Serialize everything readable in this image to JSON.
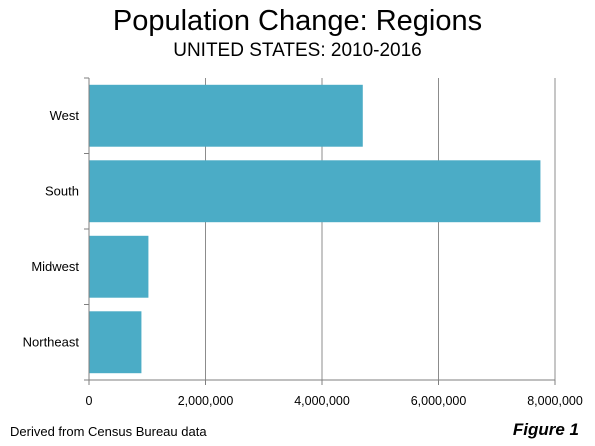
{
  "chart_data": {
    "type": "bar",
    "orientation": "horizontal",
    "title": "Population Change: Regions",
    "subtitle": "UNITED STATES: 2010-2016",
    "categories": [
      "West",
      "South",
      "Midwest",
      "Northeast"
    ],
    "values": [
      4700000,
      7750000,
      1020000,
      900000
    ],
    "xlim": [
      0,
      8000000
    ],
    "xticks": [
      0,
      2000000,
      4000000,
      6000000,
      8000000
    ],
    "xtick_labels": [
      "0",
      "2,000,000",
      "4,000,000",
      "6,000,000",
      "8,000,000"
    ],
    "grid": true,
    "bar_color": "#4BACC6"
  },
  "footer": {
    "source": "Derived from Census Bureau data",
    "figure_label": "Figure 1"
  }
}
